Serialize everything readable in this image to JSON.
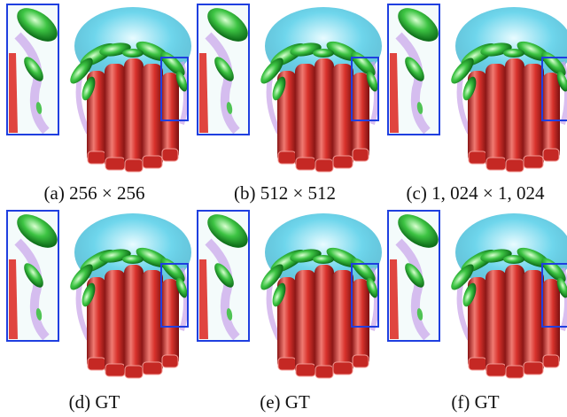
{
  "captions": [
    "(a) 256 × 256",
    "(b) 512 × 512",
    "(c) 1, 024 × 1, 024",
    "(d) GT",
    "(e) GT",
    "(f) GT"
  ]
}
